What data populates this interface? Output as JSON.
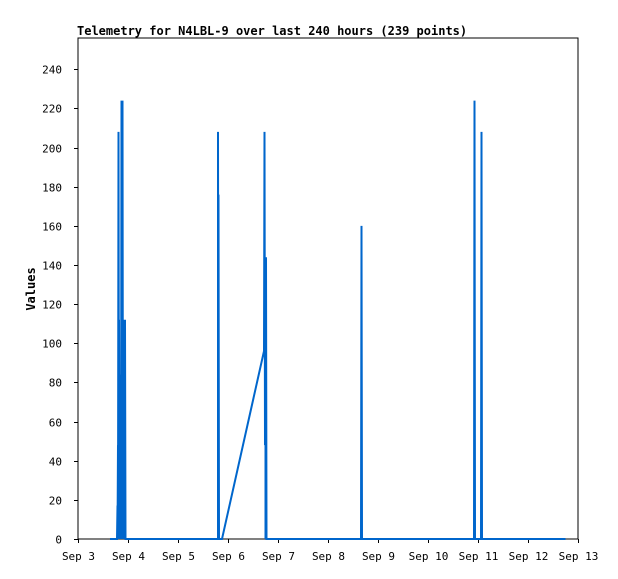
{
  "chart_data": {
    "type": "line",
    "title": "Telemetry for N4LBL-9 over last 240 hours (239 points)",
    "xlabel": "",
    "ylabel": "Values",
    "x_ticks": [
      {
        "label": "Sep 3",
        "value": 3
      },
      {
        "label": "Sep 4",
        "value": 4
      },
      {
        "label": "Sep 5",
        "value": 5
      },
      {
        "label": "Sep 6",
        "value": 6
      },
      {
        "label": "Sep 7",
        "value": 7
      },
      {
        "label": "Sep 8",
        "value": 8
      },
      {
        "label": "Sep 9",
        "value": 9
      },
      {
        "label": "Sep 10",
        "value": 10
      },
      {
        "label": "Sep 11",
        "value": 11
      },
      {
        "label": "Sep 12",
        "value": 12
      },
      {
        "label": "Sep 13",
        "value": 13
      }
    ],
    "y_ticks": [
      0,
      20,
      40,
      60,
      80,
      100,
      120,
      140,
      160,
      180,
      200,
      220,
      240
    ],
    "xlim": [
      3,
      13
    ],
    "ylim": [
      0,
      256
    ],
    "grid": false,
    "color": "#0066cc",
    "series": [
      {
        "x": [
          3.64,
          3.78,
          3.79,
          3.79,
          3.8,
          3.8,
          3.81,
          3.82,
          3.82,
          3.83,
          3.84,
          3.84,
          3.85,
          3.86,
          3.87,
          3.87,
          3.88,
          3.89,
          3.89,
          3.9,
          3.91,
          3.91,
          3.92,
          3.93,
          3.93,
          3.94,
          3.94,
          3.95,
          3.96,
          3.97,
          5.8,
          5.8,
          5.81,
          5.81,
          5.82,
          5.83,
          5.88,
          6.72,
          6.73,
          6.74,
          6.75,
          6.75,
          6.76,
          6.77,
          6.78,
          6.79,
          6.8,
          8.66,
          8.67,
          8.68,
          10.92,
          10.93,
          10.94,
          11.06,
          11.07,
          11.08,
          12.75
        ],
        "y": [
          0,
          0,
          17,
          0,
          48,
          0,
          208,
          0,
          112,
          0,
          84,
          0,
          28,
          0,
          224,
          0,
          112,
          0,
          224,
          0,
          84,
          0,
          112,
          0,
          84,
          0,
          112,
          0,
          0,
          0,
          0,
          208,
          0,
          176,
          0,
          0,
          0,
          96,
          208,
          48,
          144,
          0,
          144,
          0,
          0,
          0,
          0,
          0,
          160,
          0,
          0,
          224,
          0,
          0,
          208,
          0,
          0
        ]
      }
    ]
  }
}
